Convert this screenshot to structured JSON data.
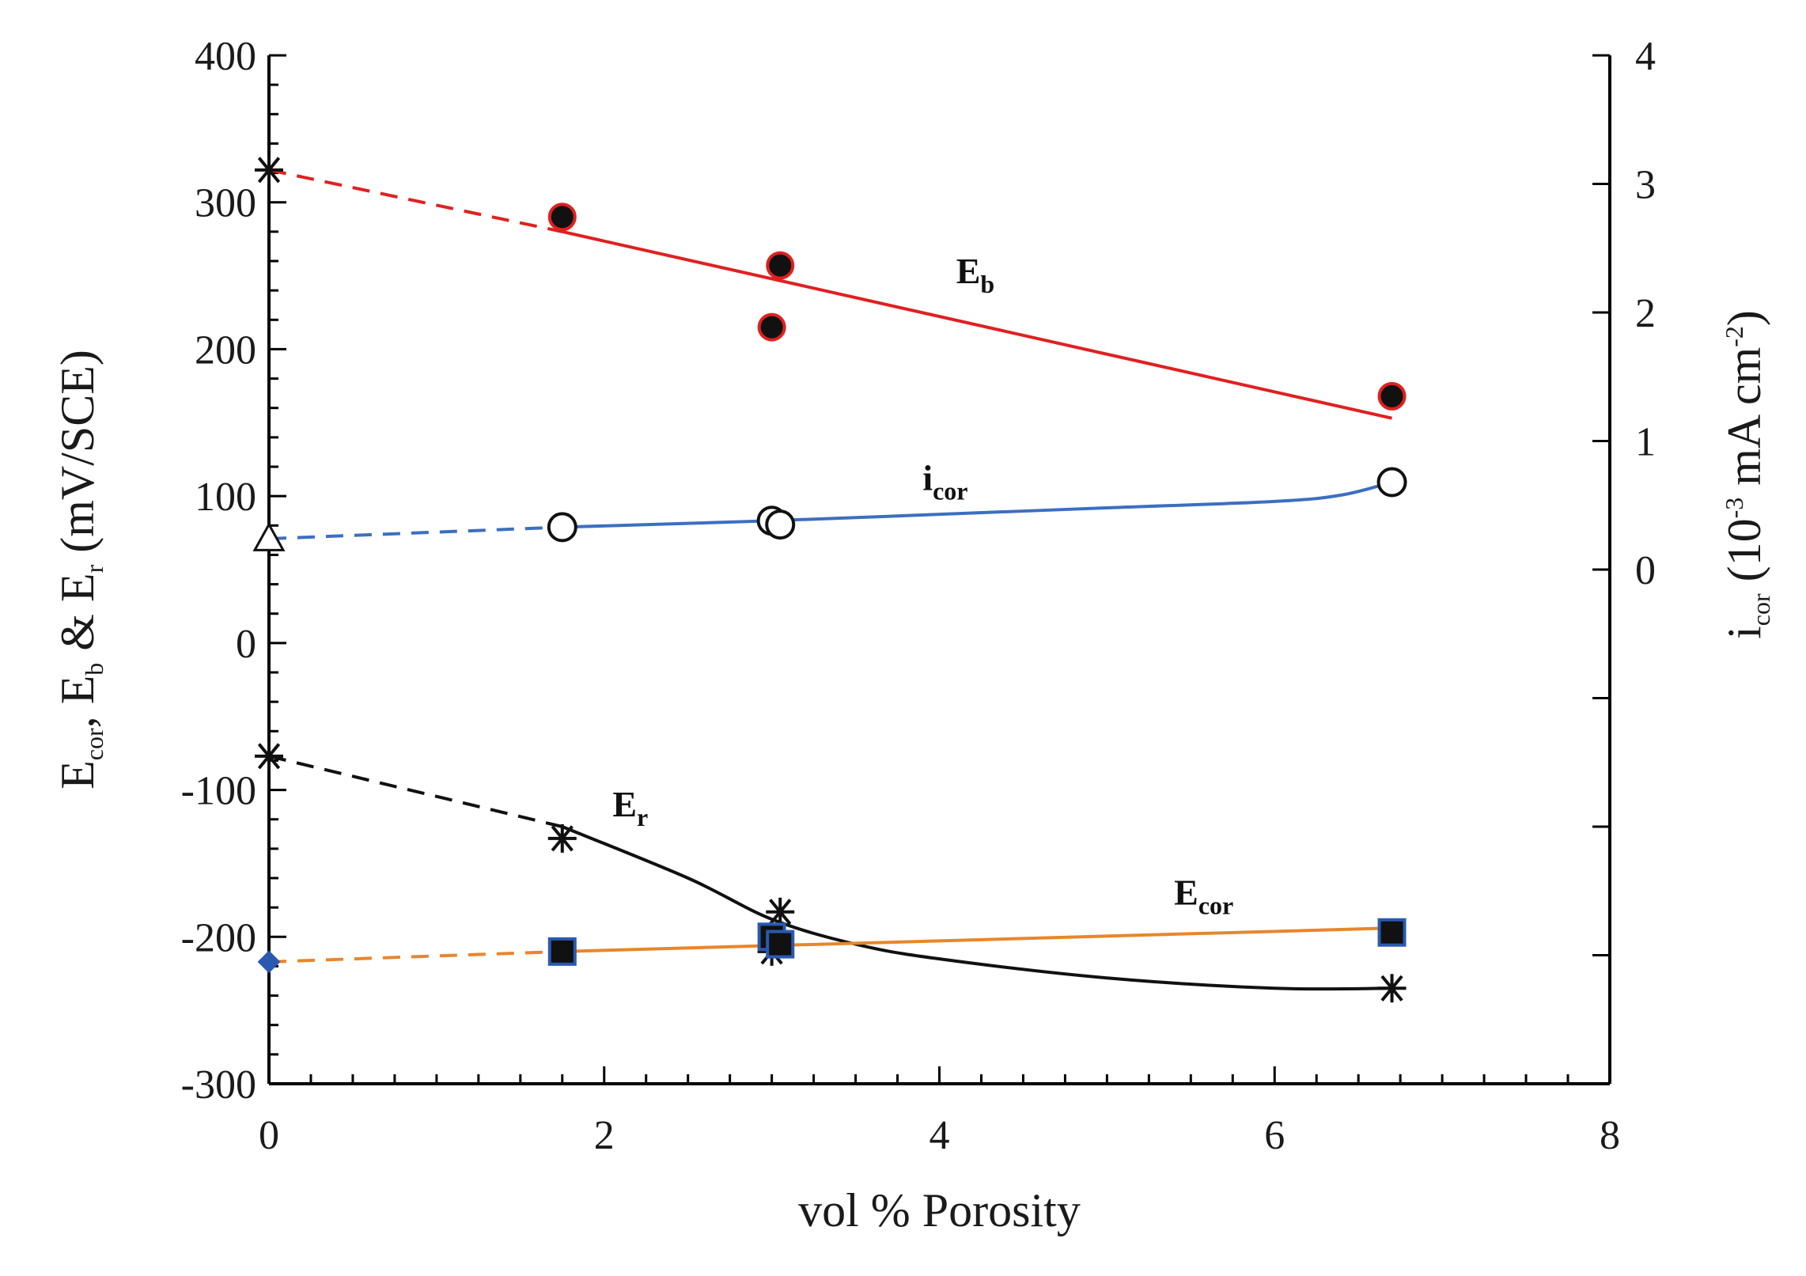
{
  "chart_data": {
    "type": "scatter",
    "title": "",
    "xlabel": "vol % Porosity",
    "xlim": [
      0,
      8
    ],
    "x_ticks": [
      0,
      2,
      4,
      6,
      8
    ],
    "ylabel_left": {
      "parts": [
        "E",
        "cor",
        ", E",
        "b",
        " & E",
        "r",
        " (mV/SCE)"
      ]
    },
    "ylim_left": [
      -300,
      400
    ],
    "y_ticks_left": [
      -300,
      -200,
      -100,
      0,
      100,
      200,
      300,
      400
    ],
    "ylabel_right": {
      "parts": [
        "i",
        "cor",
        " (10",
        "-3",
        " mA cm",
        "-2",
        ")"
      ]
    },
    "ylim_right": [
      -4,
      4
    ],
    "y_ticks_right": [
      0,
      1,
      2,
      3,
      4
    ],
    "series": [
      {
        "name": "Eb",
        "label_main": "E",
        "label_sub": "b",
        "axis": "left",
        "color": "#e02020",
        "marker": "filled-circle",
        "points": [
          [
            1.75,
            290
          ],
          [
            3.0,
            215
          ],
          [
            3.05,
            257
          ],
          [
            6.7,
            168
          ]
        ],
        "extrapolated_point": {
          "x": 0,
          "y": 322,
          "marker": "asterisk"
        },
        "fit_x": [
          1.75,
          6.7
        ],
        "fit_y": [
          280,
          153
        ],
        "dashed_x": [
          0,
          1.75
        ],
        "dashed_y": [
          322,
          280
        ]
      },
      {
        "name": "icor",
        "label_main": "i",
        "label_sub": "cor",
        "axis": "right",
        "color": "#3c6fc0",
        "marker": "open-circle",
        "points": [
          [
            1.75,
            0.33
          ],
          [
            3.0,
            0.38
          ],
          [
            3.05,
            0.35
          ],
          [
            6.7,
            0.68
          ]
        ],
        "extrapolated_point": {
          "x": 0,
          "y": 0.24,
          "marker": "open-triangle"
        },
        "fit_x": [
          1.75,
          3.0,
          4.0,
          5.0,
          6.0,
          6.4,
          6.7
        ],
        "fit_y": [
          0.33,
          0.38,
          0.43,
          0.48,
          0.53,
          0.58,
          0.68
        ],
        "dashed_x": [
          0,
          1.75
        ],
        "dashed_y": [
          0.24,
          0.33
        ]
      },
      {
        "name": "Er",
        "label_main": "E",
        "label_sub": "r",
        "axis": "left",
        "color": "#111111",
        "marker": "asterisk",
        "points": [
          [
            1.75,
            -133
          ],
          [
            3.0,
            -210
          ],
          [
            3.05,
            -183
          ],
          [
            6.7,
            -235
          ]
        ],
        "extrapolated_point": {
          "x": 0,
          "y": -77,
          "marker": "asterisk"
        },
        "fit_x": [
          1.75,
          2.5,
          3.0,
          3.5,
          4.0,
          5.0,
          6.0,
          6.7
        ],
        "fit_y": [
          -125,
          -160,
          -188,
          -205,
          -215,
          -228,
          -235,
          -235
        ],
        "dashed_x": [
          0,
          1.75
        ],
        "dashed_y": [
          -77,
          -125
        ]
      },
      {
        "name": "Ecor",
        "label_main": "E",
        "label_sub": "cor",
        "axis": "left",
        "color": "#e8862a",
        "marker": "filled-square",
        "points": [
          [
            1.75,
            -210
          ],
          [
            3.0,
            -200
          ],
          [
            3.05,
            -205
          ],
          [
            6.7,
            -197
          ]
        ],
        "extrapolated_point": {
          "x": 0,
          "y": -217,
          "marker": "filled-diamond"
        },
        "fit_x": [
          1.75,
          6.7
        ],
        "fit_y": [
          -210,
          -194
        ],
        "dashed_x": [
          0,
          1.75
        ],
        "dashed_y": [
          -217,
          -210
        ]
      }
    ],
    "annotations": [
      {
        "series": "Eb",
        "x": 4.1,
        "y": 245
      },
      {
        "series": "icor",
        "x": 3.9,
        "y": 0.62
      },
      {
        "series": "Er",
        "x": 2.05,
        "y": -118
      },
      {
        "series": "Ecor",
        "x": 5.4,
        "y": -178
      }
    ]
  }
}
